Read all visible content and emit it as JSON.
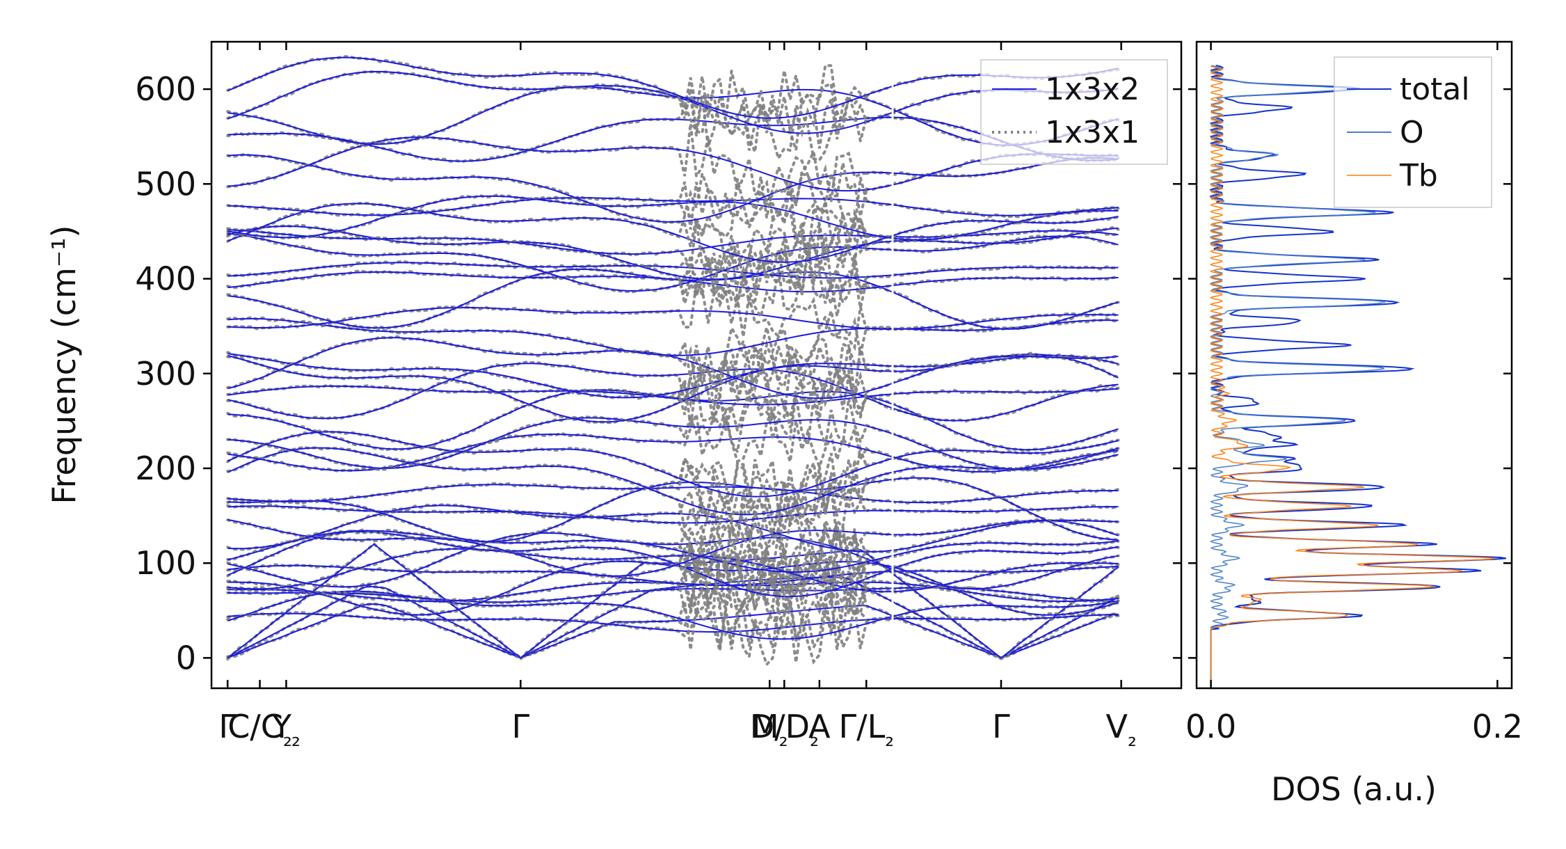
{
  "chart_data": [
    {
      "type": "line",
      "panel": "phonon band structure",
      "ylabel": "Frequency (cm⁻¹)",
      "ylim": [
        -32,
        650
      ],
      "yticks": [
        0,
        100,
        200,
        300,
        400,
        500,
        600
      ],
      "k_labels": [
        {
          "label": "Γ",
          "x": 0.0
        },
        {
          "label": "C/C₂",
          "x": 0.11
        },
        {
          "label": "Y₂",
          "x": 0.2
        },
        {
          "label": "Γ",
          "x": 1.0
        },
        {
          "label": "M₂",
          "x": 1.85
        },
        {
          "label": "D/D₂",
          "x": 1.9
        },
        {
          "label": "A",
          "x": 2.02
        },
        {
          "label": "Γ/L₂",
          "x": 2.18
        },
        {
          "label": "Γ",
          "x": 2.64
        },
        {
          "label": "V₂",
          "x": 3.05
        }
      ],
      "segment_breaks": [
        2.18
      ],
      "series": [
        {
          "name": "1x3x2",
          "style": "solid",
          "color": "#1b1be0"
        },
        {
          "name": "1x3x1",
          "style": "dotted",
          "color": "#808080"
        }
      ],
      "band_frequencies_at_gamma": [
        0,
        0,
        0,
        38,
        48,
        68,
        72,
        80,
        88,
        96,
        103,
        108,
        115,
        120,
        140,
        152,
        163,
        175,
        190,
        208,
        220,
        232,
        258,
        278,
        286,
        290,
        300,
        310,
        340,
        360,
        385,
        398,
        410,
        420,
        430,
        440,
        452,
        468,
        478,
        498,
        525,
        552,
        578,
        590,
        605
      ]
    },
    {
      "type": "line",
      "panel": "density of states",
      "xlabel": "DOS (a.u.)",
      "xlim": [
        -0.01,
        0.21
      ],
      "xticks": [
        0.0,
        0.2
      ],
      "xtick_labels": [
        "0.0",
        "0.2"
      ],
      "series": [
        {
          "name": "total",
          "color": "#1433cc",
          "peaks": [
            [
              45,
              0.1
            ],
            [
              60,
              0.03
            ],
            [
              75,
              0.16
            ],
            [
              92,
              0.18
            ],
            [
              105,
              0.2
            ],
            [
              120,
              0.15
            ],
            [
              140,
              0.13
            ],
            [
              160,
              0.11
            ],
            [
              180,
              0.12
            ],
            [
              200,
              0.06
            ],
            [
              210,
              0.05
            ],
            [
              225,
              0.05
            ],
            [
              235,
              0.04
            ],
            [
              250,
              0.1
            ],
            [
              270,
              0.03
            ],
            [
              305,
              0.14
            ],
            [
              330,
              0.09
            ],
            [
              355,
              0.06
            ],
            [
              375,
              0.13
            ],
            [
              400,
              0.1
            ],
            [
              420,
              0.11
            ],
            [
              450,
              0.08
            ],
            [
              470,
              0.12
            ],
            [
              510,
              0.06
            ],
            [
              530,
              0.04
            ],
            [
              580,
              0.05
            ],
            [
              600,
              0.1
            ]
          ]
        },
        {
          "name": "O",
          "color": "#4a7fc8",
          "peaks": [
            [
              45,
              0.005
            ],
            [
              75,
              0.01
            ],
            [
              105,
              0.012
            ],
            [
              140,
              0.015
            ],
            [
              180,
              0.02
            ],
            [
              210,
              0.045
            ],
            [
              225,
              0.03
            ],
            [
              250,
              0.09
            ],
            [
              305,
              0.12
            ],
            [
              375,
              0.12
            ],
            [
              420,
              0.1
            ],
            [
              470,
              0.11
            ],
            [
              530,
              0.04
            ],
            [
              600,
              0.09
            ]
          ]
        },
        {
          "name": "Tb",
          "color": "#ff7f0e",
          "peaks": [
            [
              45,
              0.095
            ],
            [
              60,
              0.03
            ],
            [
              75,
              0.15
            ],
            [
              92,
              0.17
            ],
            [
              105,
              0.19
            ],
            [
              120,
              0.14
            ],
            [
              140,
              0.11
            ],
            [
              160,
              0.09
            ],
            [
              180,
              0.1
            ],
            [
              200,
              0.05
            ],
            [
              225,
              0.02
            ],
            [
              250,
              0.01
            ],
            [
              280,
              0.005
            ]
          ]
        }
      ]
    }
  ]
}
